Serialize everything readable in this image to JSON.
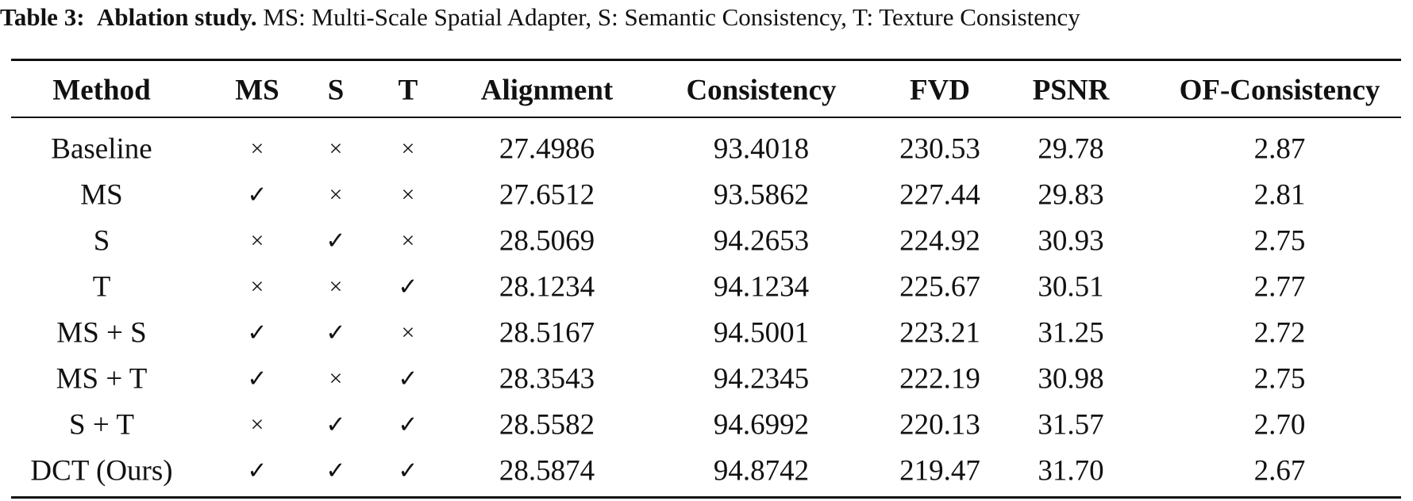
{
  "caption": {
    "label": "Table 3:",
    "title": "Ablation study.",
    "text": "MS: Multi-Scale Spatial Adapter, S: Semantic Consistency, T: Texture Consistency"
  },
  "table": {
    "headers": [
      "Method",
      "MS",
      "S",
      "T",
      "Alignment",
      "Consistency",
      "FVD",
      "PSNR",
      "OF-Consistency"
    ],
    "rows": [
      [
        "Baseline",
        "×",
        "×",
        "×",
        "27.4986",
        "93.4018",
        "230.53",
        "29.78",
        "2.87"
      ],
      [
        "MS",
        "✓",
        "×",
        "×",
        "27.6512",
        "93.5862",
        "227.44",
        "29.83",
        "2.81"
      ],
      [
        "S",
        "×",
        "✓",
        "×",
        "28.5069",
        "94.2653",
        "224.92",
        "30.93",
        "2.75"
      ],
      [
        "T",
        "×",
        "×",
        "✓",
        "28.1234",
        "94.1234",
        "225.67",
        "30.51",
        "2.77"
      ],
      [
        "MS + S",
        "✓",
        "✓",
        "×",
        "28.5167",
        "94.5001",
        "223.21",
        "31.25",
        "2.72"
      ],
      [
        "MS + T",
        "✓",
        "×",
        "✓",
        "28.3543",
        "94.2345",
        "222.19",
        "30.98",
        "2.75"
      ],
      [
        "S + T",
        "×",
        "✓",
        "✓",
        "28.5582",
        "94.6992",
        "220.13",
        "31.57",
        "2.70"
      ],
      [
        "DCT (Ours)",
        "✓",
        "✓",
        "✓",
        "28.5874",
        "94.8742",
        "219.47",
        "31.70",
        "2.67"
      ]
    ]
  }
}
